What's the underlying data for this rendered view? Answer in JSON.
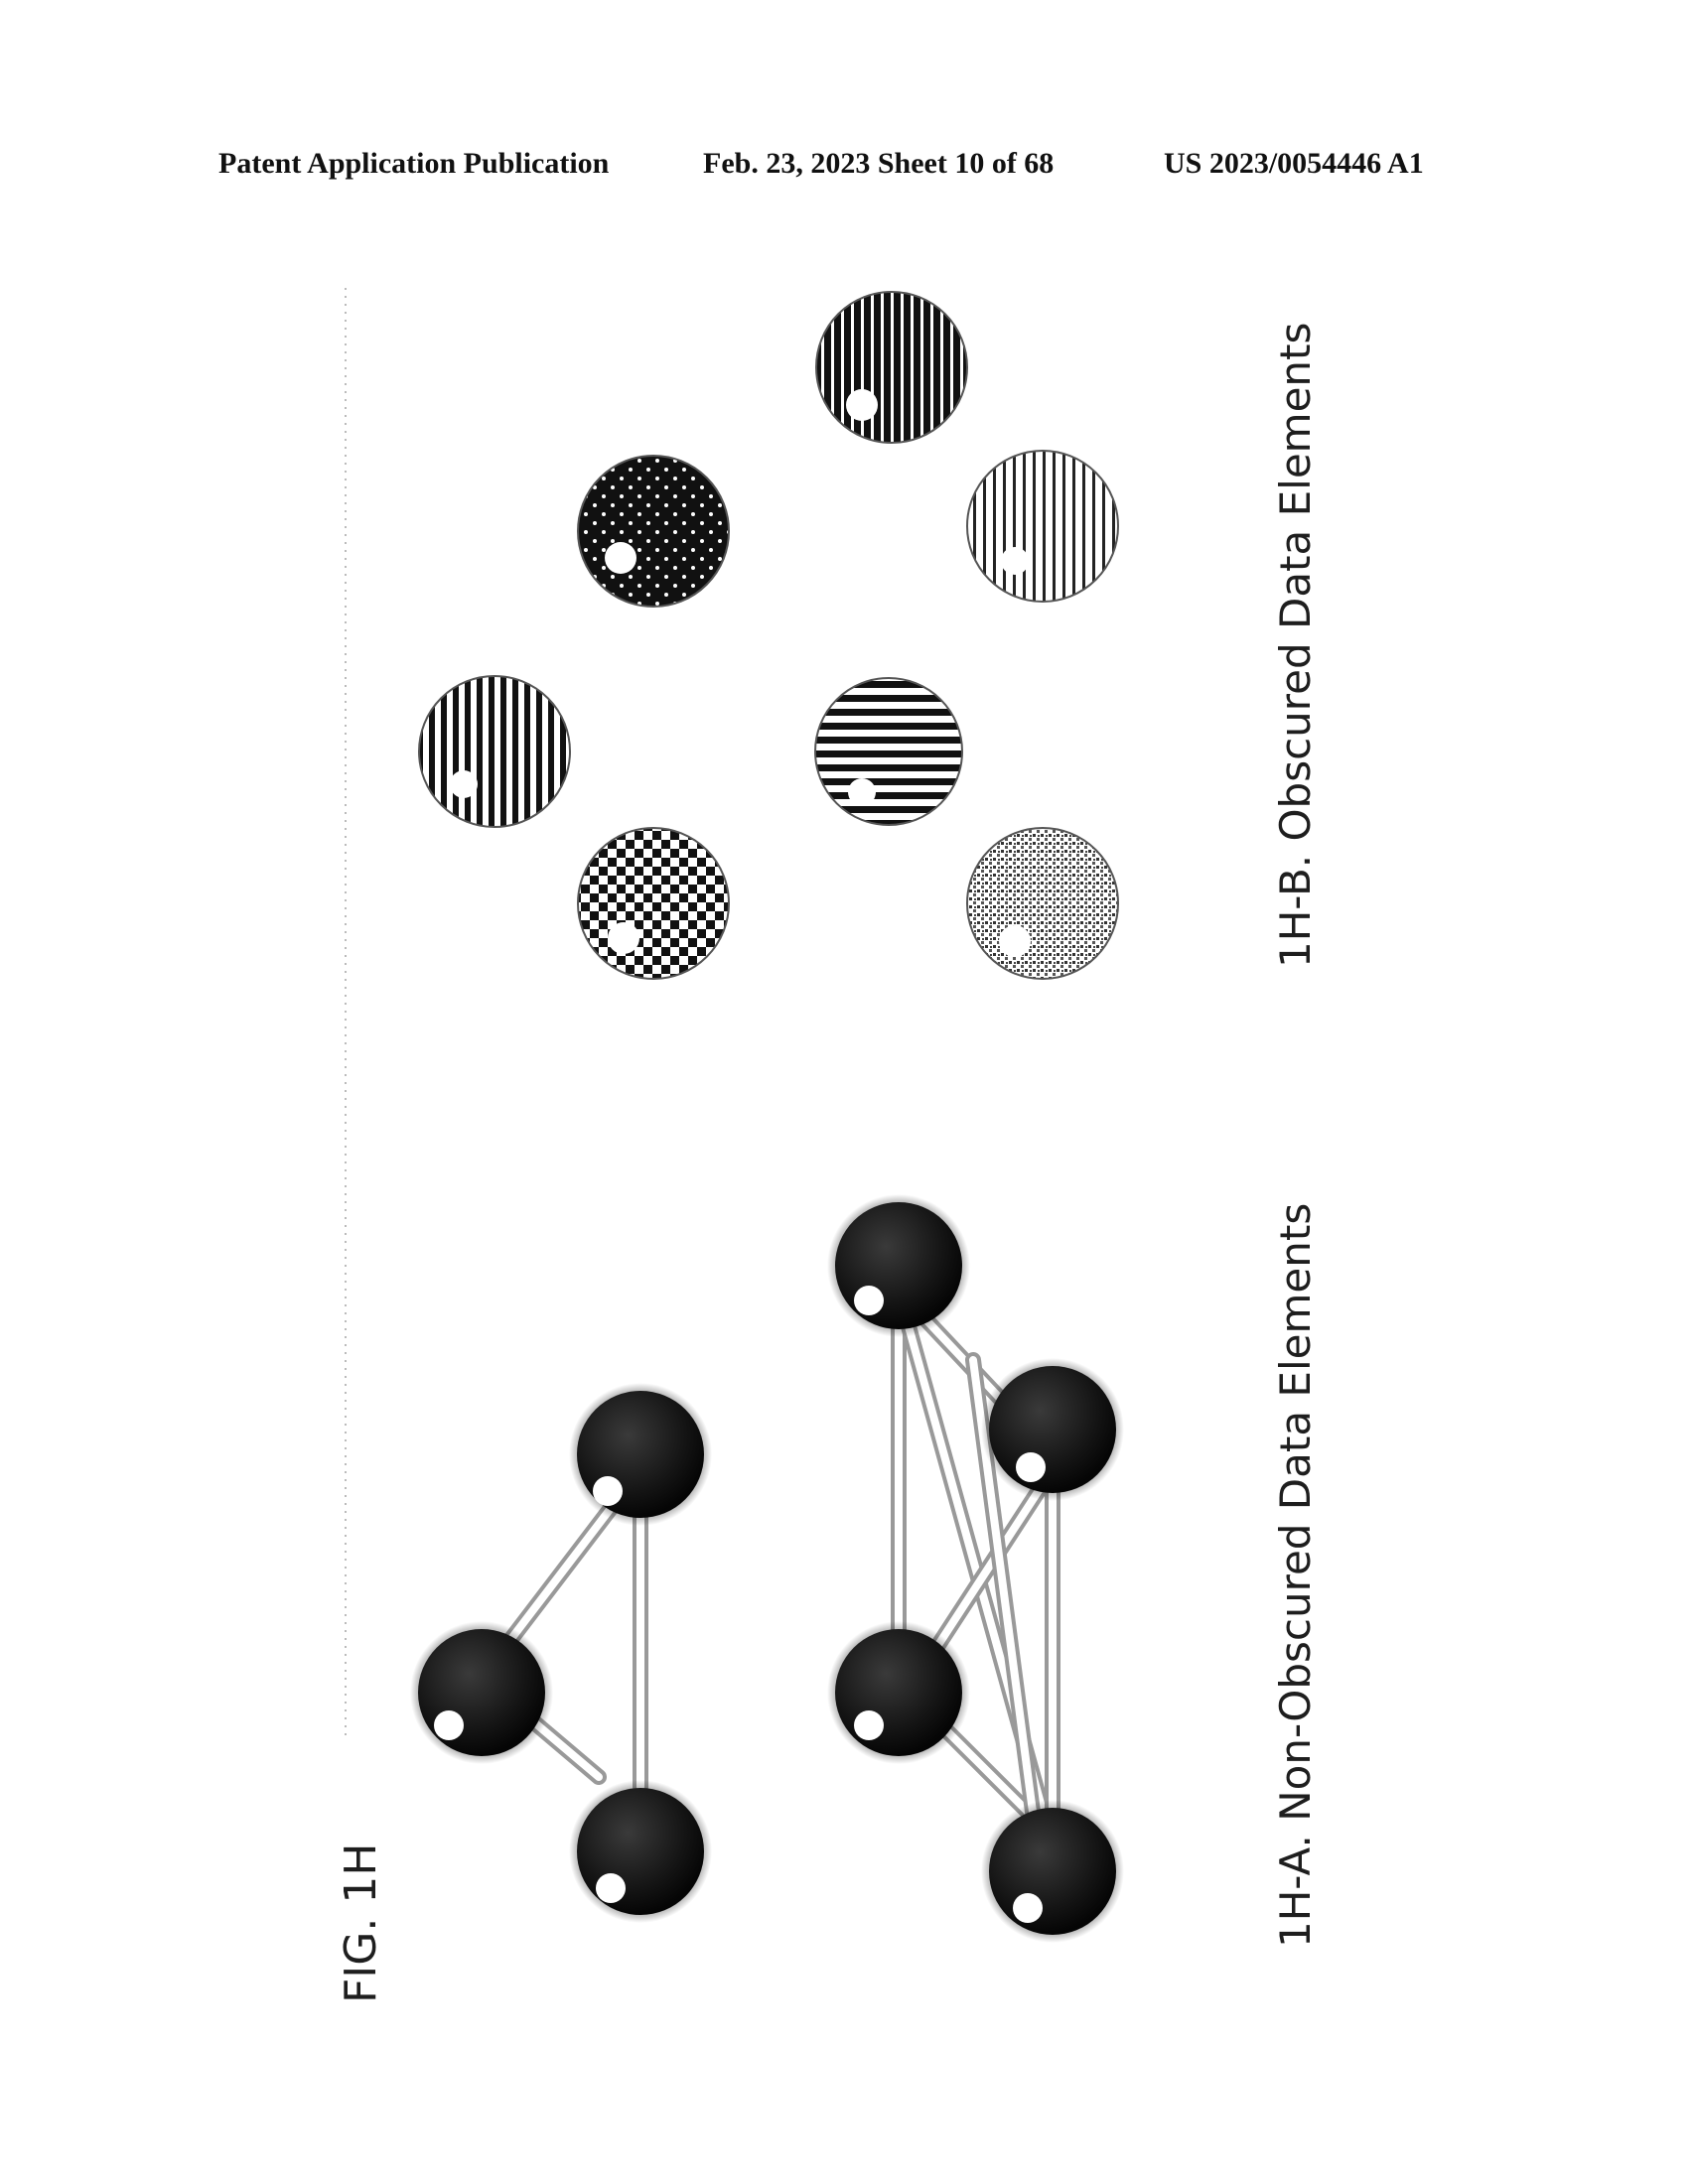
{
  "header": {
    "publication": "Patent Application Publication",
    "date_sheet": "Feb. 23, 2023  Sheet 10 of 68",
    "number": "US 2023/0054446 A1"
  },
  "figure": {
    "title": "FIG. 1H",
    "caption_a": "1H-A. Non-Obscured Data Elements",
    "caption_b": "1H-B. Obscured Data Elements"
  },
  "colors": {
    "ink": "#111111",
    "background": "#ffffff",
    "node_fill": "#1a1a1a",
    "highlight": "#ffffff"
  },
  "patterns": [
    "vertical-stripes",
    "dots",
    "dense-vertical-stripes",
    "checker",
    "horizontal-stripes",
    "fine-vertical-stripes",
    "stipple"
  ]
}
